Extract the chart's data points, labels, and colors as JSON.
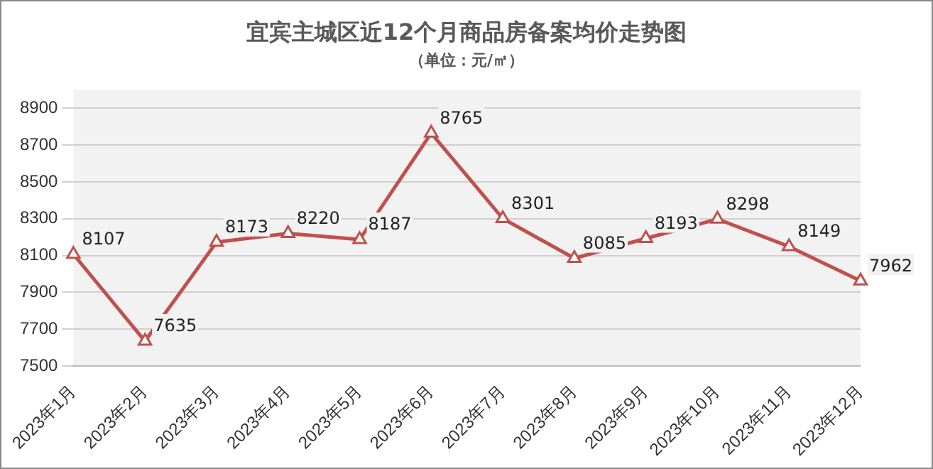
{
  "chart_data": {
    "type": "line",
    "title": "宜宾主城区近12个月商品房备案均价走势图",
    "subtitle": "（单位：元/㎡）",
    "categories": [
      "2023年1月",
      "2023年2月",
      "2023年3月",
      "2023年4月",
      "2023年5月",
      "2023年6月",
      "2023年7月",
      "2023年8月",
      "2023年9月",
      "2023年10月",
      "2023年11月",
      "2023年12月"
    ],
    "series": [
      {
        "color": "#c0504d",
        "values": [
          8107,
          7635,
          8173,
          8220,
          8187,
          8765,
          8301,
          8085,
          8193,
          8298,
          8149,
          7962
        ]
      }
    ],
    "ylim": [
      7500,
      9000
    ],
    "yticks": [
      7500,
      7700,
      7900,
      8100,
      8300,
      8500,
      8700,
      8900
    ],
    "grid": "y",
    "legend": false,
    "marker": "triangle",
    "line_style": "solid",
    "data_labels": true
  }
}
